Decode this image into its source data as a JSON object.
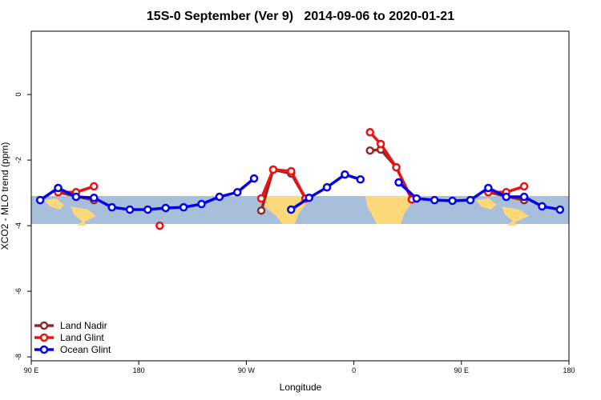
{
  "chart_data": {
    "type": "line",
    "title": "15S-0 September (Ver 9)   2014-09-06 to 2020-01-21",
    "x_label": "Longitude",
    "y_label": "XCO2 - MLO trend (ppm)",
    "xlim": [
      90,
      540
    ],
    "ylim": [
      -8.12,
      1.93
    ],
    "xticks": [
      {
        "value": 90,
        "label": "90 E"
      },
      180,
      {
        "value": 270,
        "label": "90 W"
      },
      {
        "value": 360,
        "label": "0"
      },
      {
        "value": 450,
        "label": "90 E"
      },
      180
    ],
    "yticks": [
      0,
      -2,
      -4,
      -6,
      -8
    ],
    "legend": "bottom-left",
    "series": [
      {
        "name": "Land Nadir",
        "color": "#8b2a2a",
        "x": [
          112.5,
          142.5,
          null,
          282.5,
          292.5,
          307.5,
          319.5,
          null,
          373.5,
          382.5,
          395.5,
          408.5,
          null,
          472.5,
          502.5
        ],
        "values": [
          -2.98,
          -3.22,
          null,
          -3.54,
          -2.29,
          -2.41,
          -3.17,
          null,
          -1.71,
          -1.68,
          -2.22,
          -3.2,
          null,
          -2.98,
          -3.22
        ]
      },
      {
        "name": "Land Glint",
        "color": "#ee1111",
        "x": [
          112.5,
          127.5,
          142.5,
          null,
          197.5,
          null,
          282.5,
          292.5,
          307.5,
          319.5,
          null,
          373.5,
          382.5,
          395.5,
          408.5,
          null,
          472.5,
          487.5,
          502.5
        ],
        "values": [
          -2.98,
          -2.98,
          -2.8,
          null,
          -4.0,
          null,
          -3.17,
          -2.29,
          -2.34,
          -3.17,
          null,
          -1.15,
          -1.51,
          -2.22,
          -3.2,
          null,
          -2.98,
          -2.98,
          -2.8
        ]
      },
      {
        "name": "Ocean Glint",
        "color": "#0000ee",
        "x": [
          97.5,
          112.5,
          127.5,
          142.5,
          157.5,
          172.5,
          187.5,
          202.5,
          217.5,
          232.5,
          247.5,
          262.5,
          276.5,
          null,
          307.5,
          322.5,
          337.5,
          352.5,
          365.5,
          null,
          397.5,
          412.5,
          427.5,
          442.5,
          457.5,
          472.5,
          487.5,
          502.5,
          517.5,
          532.5
        ],
        "values": [
          -3.22,
          -2.85,
          -3.12,
          -3.15,
          -3.44,
          -3.51,
          -3.51,
          -3.46,
          -3.44,
          -3.34,
          -3.12,
          -2.98,
          -2.56,
          null,
          -3.51,
          -3.15,
          -2.83,
          -2.44,
          -2.59,
          null,
          -2.68,
          -3.17,
          -3.22,
          -3.24,
          -3.22,
          -2.85,
          -3.12,
          -3.12,
          -3.41,
          -3.51
        ]
      }
    ]
  }
}
